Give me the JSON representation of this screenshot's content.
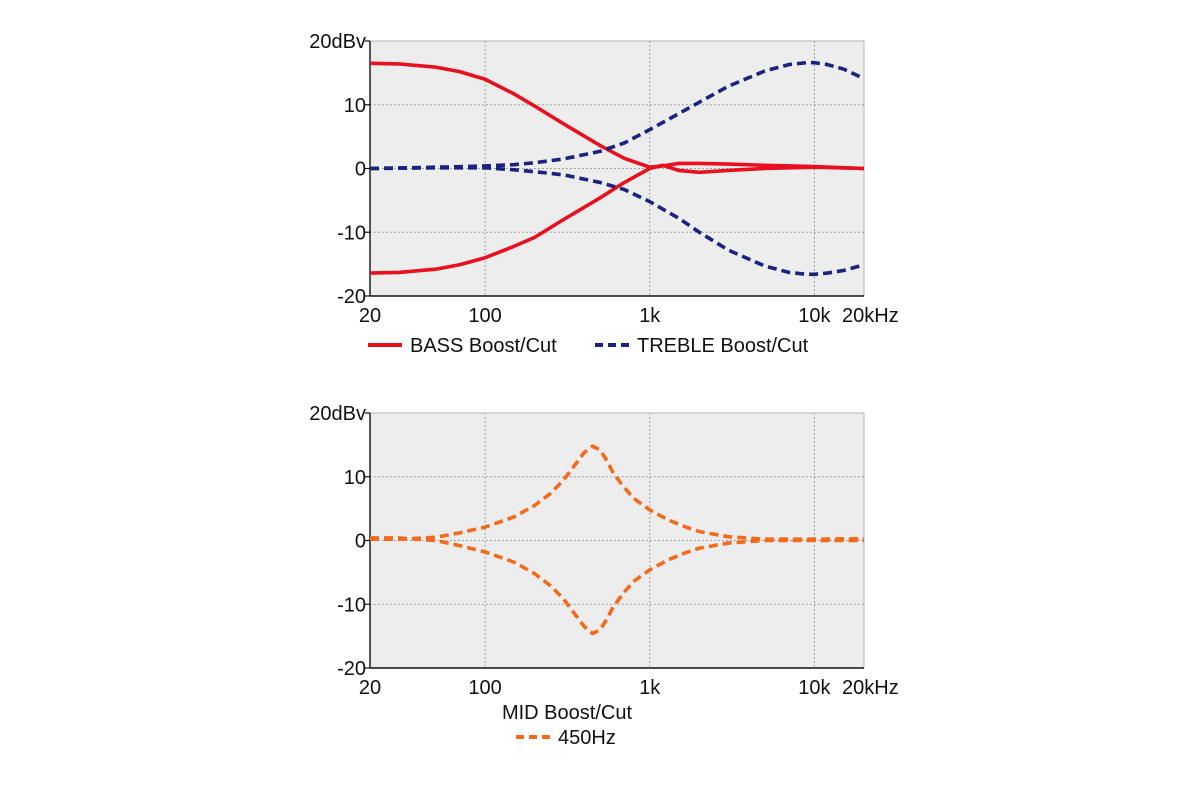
{
  "chart_data": [
    {
      "type": "line",
      "x_scale": "log",
      "xlim": [
        20,
        20000
      ],
      "ylim": [
        -20,
        20
      ],
      "grid": true,
      "x_ticks": [
        {
          "value": 20,
          "label": "20"
        },
        {
          "value": 100,
          "label": "100"
        },
        {
          "value": 1000,
          "label": "1k"
        },
        {
          "value": 10000,
          "label": "10k"
        },
        {
          "value": 20000,
          "label": "20kHz"
        }
      ],
      "y_ticks": [
        {
          "value": 20,
          "label": "20dBv"
        },
        {
          "value": 10,
          "label": "10"
        },
        {
          "value": 0,
          "label": "0"
        },
        {
          "value": -10,
          "label": "-10"
        },
        {
          "value": -20,
          "label": "-20"
        }
      ],
      "legend_position": "bottom",
      "legend": [
        {
          "label": "BASS Boost/Cut",
          "color": "#e8101e",
          "dash": "solid"
        },
        {
          "label": "TREBLE Boost/Cut",
          "color": "#1a237e",
          "dash": "dashed"
        }
      ],
      "series": [
        {
          "color": "#e8101e",
          "dash": "solid",
          "x": [
            20,
            30,
            50,
            70,
            100,
            150,
            200,
            300,
            500,
            700,
            1000,
            1200,
            1500,
            2000,
            3000,
            5000,
            10000,
            20000
          ],
          "y": [
            16.5,
            16.4,
            15.9,
            15.2,
            14.0,
            11.7,
            9.8,
            7.0,
            3.6,
            1.6,
            0.2,
            0.4,
            0.8,
            0.8,
            0.7,
            0.5,
            0.3,
            0.0
          ]
        },
        {
          "color": "#e8101e",
          "dash": "solid",
          "x": [
            20,
            30,
            50,
            70,
            100,
            150,
            200,
            300,
            500,
            700,
            1000,
            1200,
            1500,
            2000,
            3000,
            5000,
            10000,
            20000
          ],
          "y": [
            -16.4,
            -16.3,
            -15.8,
            -15.1,
            -14.0,
            -12.2,
            -10.8,
            -8.0,
            -4.6,
            -2.2,
            0.0,
            0.5,
            -0.3,
            -0.6,
            -0.3,
            0.0,
            0.2,
            0.0
          ]
        },
        {
          "color": "#1a237e",
          "dash": "dashed",
          "x": [
            20,
            50,
            100,
            150,
            200,
            300,
            500,
            700,
            1000,
            1500,
            2000,
            3000,
            5000,
            7000,
            9000,
            10000,
            12000,
            15000,
            20000
          ],
          "y": [
            0.0,
            0.2,
            0.4,
            0.6,
            0.9,
            1.5,
            2.7,
            4.0,
            6.1,
            8.6,
            10.4,
            12.9,
            15.3,
            16.3,
            16.6,
            16.6,
            16.3,
            15.6,
            14.1
          ]
        },
        {
          "color": "#1a237e",
          "dash": "dashed",
          "x": [
            20,
            50,
            100,
            150,
            200,
            300,
            500,
            700,
            1000,
            1500,
            2000,
            3000,
            5000,
            7000,
            9000,
            10000,
            12000,
            15000,
            20000
          ],
          "y": [
            0.0,
            0.1,
            0.1,
            -0.2,
            -0.5,
            -1.0,
            -2.2,
            -3.3,
            -5.2,
            -7.8,
            -10.0,
            -12.8,
            -15.3,
            -16.3,
            -16.6,
            -16.6,
            -16.4,
            -16.0,
            -15.1
          ]
        }
      ]
    },
    {
      "type": "line",
      "x_scale": "log",
      "xlim": [
        20,
        20000
      ],
      "ylim": [
        -20,
        20
      ],
      "grid": true,
      "xlabel": "MID Boost/Cut",
      "x_ticks": [
        {
          "value": 20,
          "label": "20"
        },
        {
          "value": 100,
          "label": "100"
        },
        {
          "value": 1000,
          "label": "1k"
        },
        {
          "value": 10000,
          "label": "10k"
        },
        {
          "value": 20000,
          "label": "20kHz"
        }
      ],
      "y_ticks": [
        {
          "value": 20,
          "label": "20dBv"
        },
        {
          "value": 10,
          "label": "10"
        },
        {
          "value": 0,
          "label": "0"
        },
        {
          "value": -10,
          "label": "-10"
        },
        {
          "value": -20,
          "label": "-20"
        }
      ],
      "legend_position": "bottom",
      "legend": [
        {
          "label": "450Hz",
          "color": "#f26a1b",
          "dash": "dashed"
        }
      ],
      "series": [
        {
          "color": "#f26a1b",
          "dash": "dashed",
          "x": [
            20,
            30,
            50,
            70,
            100,
            150,
            200,
            250,
            300,
            350,
            400,
            450,
            500,
            550,
            600,
            700,
            800,
            1000,
            1300,
            1700,
            2000,
            3000,
            5000,
            10000,
            20000
          ],
          "y": [
            0.2,
            0.2,
            0.5,
            1.2,
            2.1,
            3.7,
            5.5,
            7.4,
            9.5,
            11.8,
            13.8,
            14.8,
            14.2,
            12.5,
            10.6,
            8.3,
            6.6,
            4.8,
            3.2,
            2.0,
            1.4,
            0.6,
            0.2,
            0.2,
            0.3
          ]
        },
        {
          "color": "#f26a1b",
          "dash": "dashed",
          "x": [
            20,
            30,
            50,
            70,
            100,
            150,
            200,
            250,
            300,
            350,
            400,
            450,
            500,
            550,
            600,
            700,
            800,
            1000,
            1300,
            1700,
            2000,
            3000,
            5000,
            10000,
            20000
          ],
          "y": [
            0.4,
            0.4,
            0.0,
            -0.8,
            -1.8,
            -3.4,
            -5.2,
            -7.1,
            -9.2,
            -11.5,
            -13.5,
            -14.6,
            -14.0,
            -12.3,
            -10.4,
            -8.1,
            -6.4,
            -4.6,
            -3.0,
            -1.8,
            -1.2,
            -0.4,
            0.0,
            0.0,
            0.0
          ]
        }
      ]
    }
  ]
}
